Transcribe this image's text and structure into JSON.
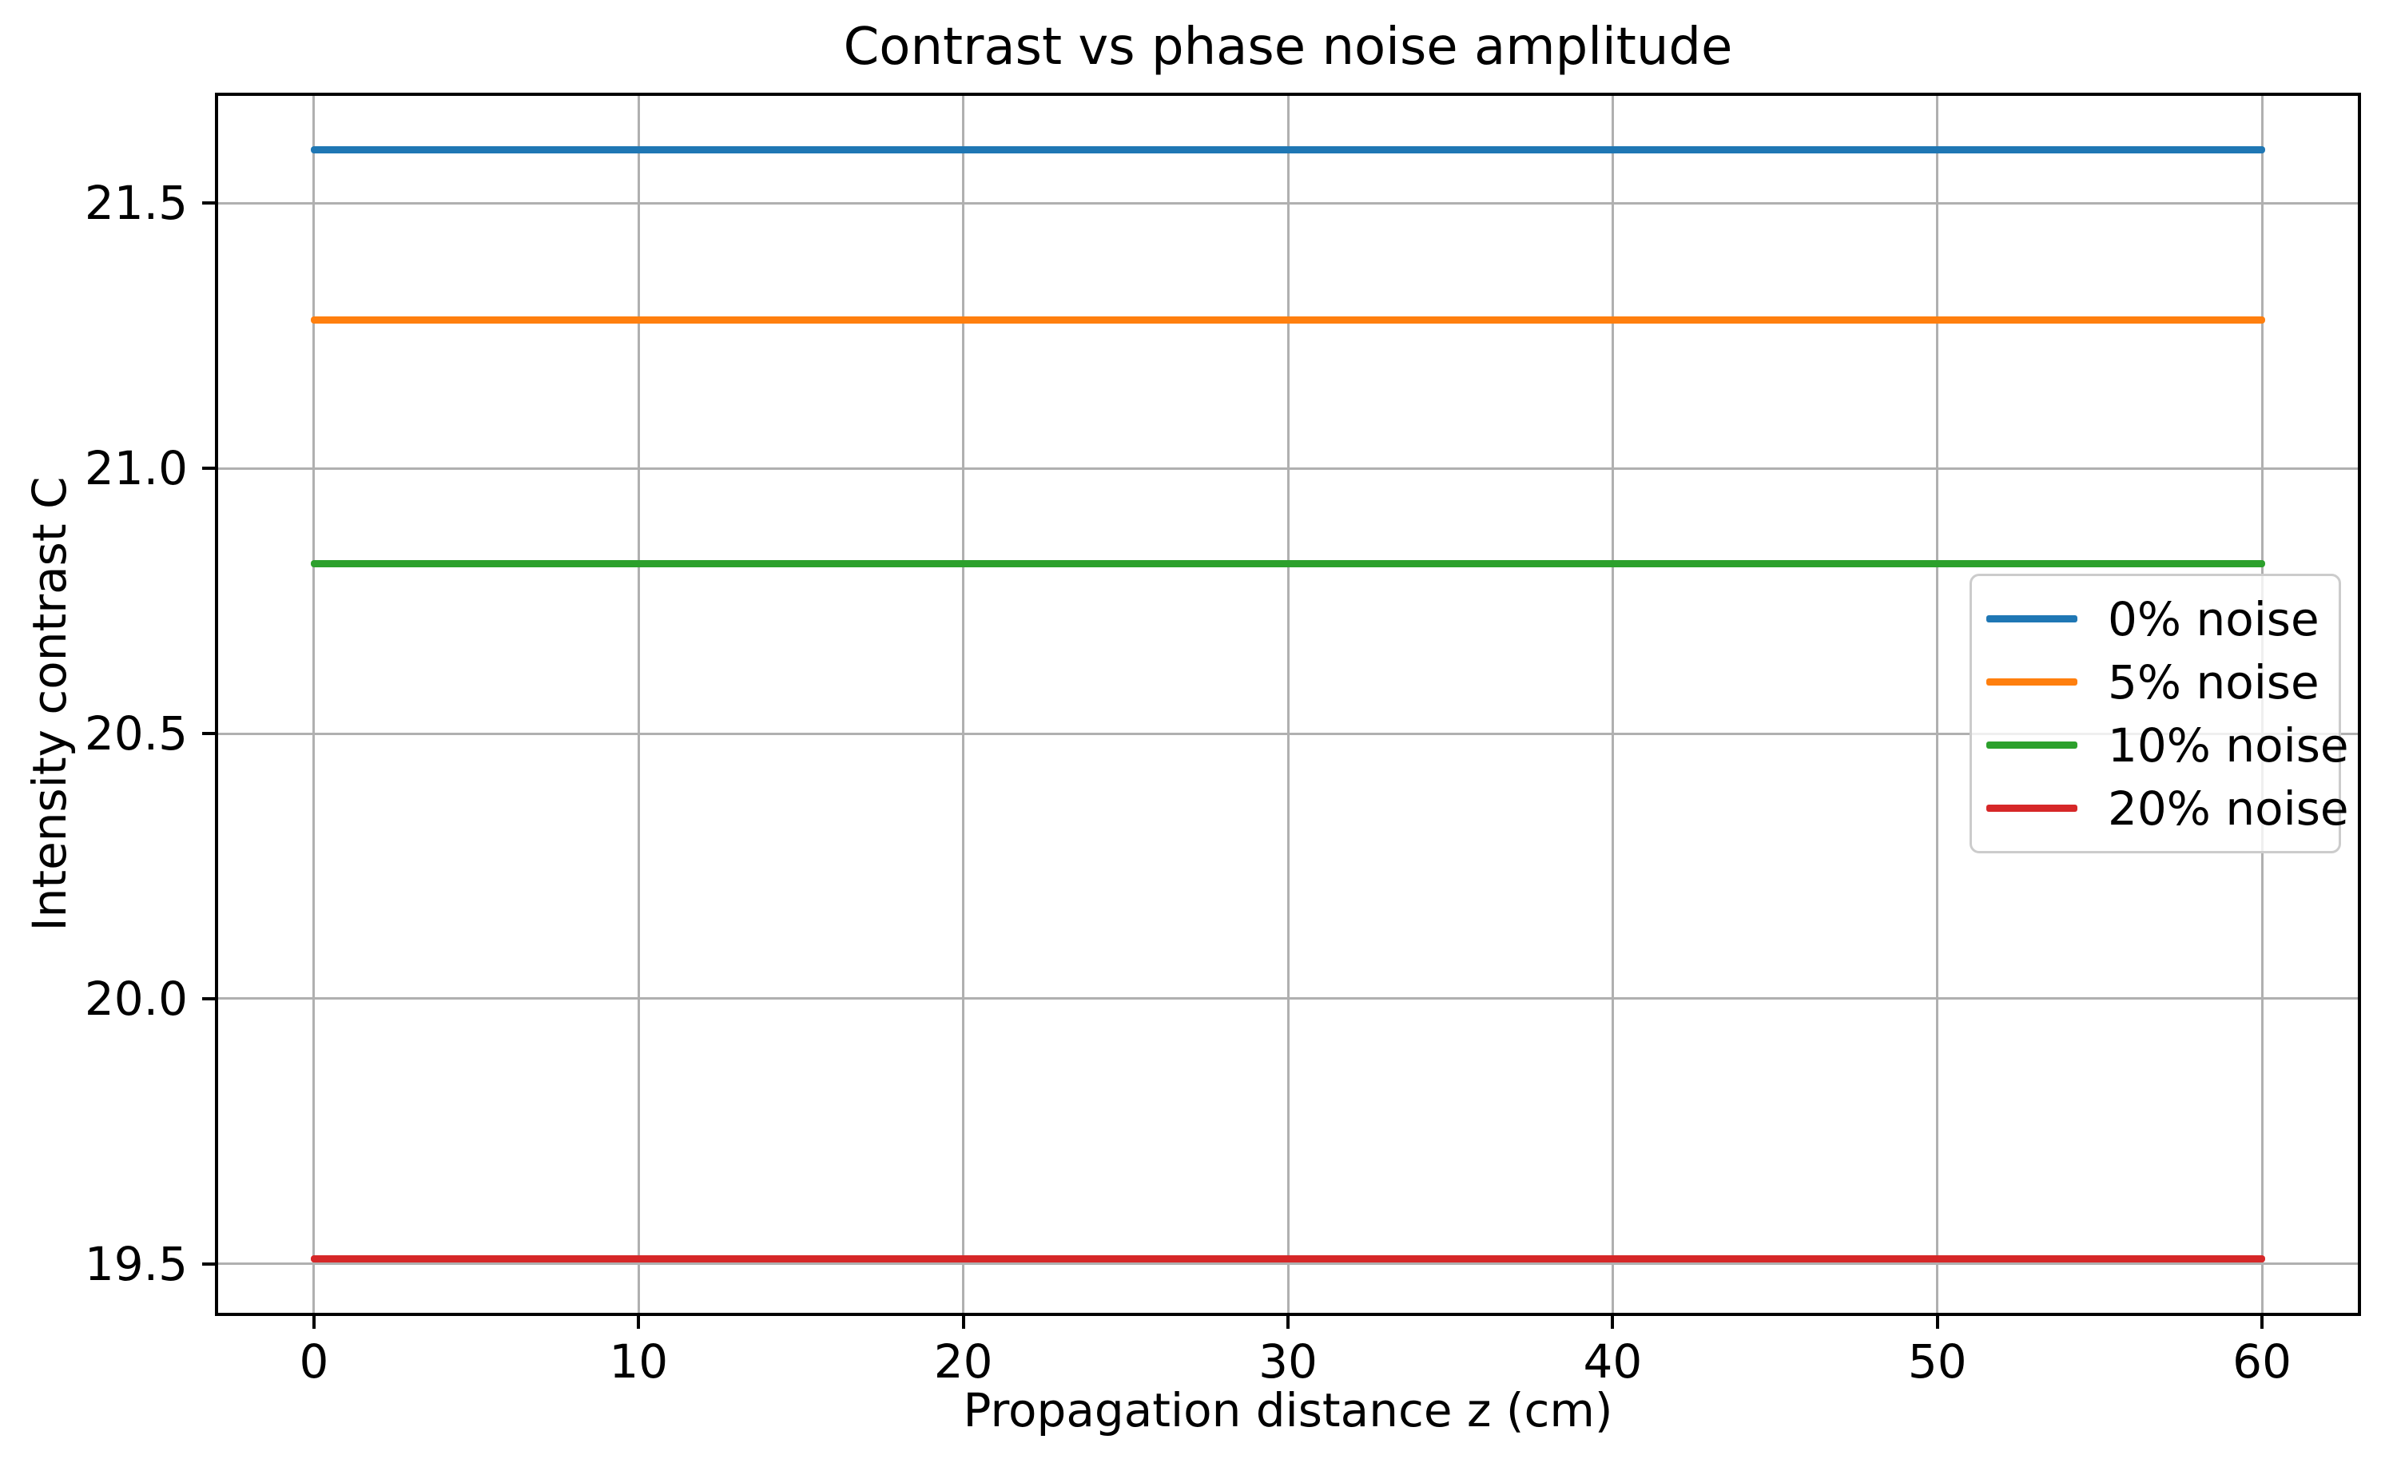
{
  "chart_data": {
    "type": "line",
    "title": "Contrast vs phase noise amplitude",
    "xlabel": "Propagation distance z (cm)",
    "ylabel": "Intensity contrast C",
    "x_range": [
      0,
      60
    ],
    "xlim": [
      -3,
      63
    ],
    "ylim": [
      19.405,
      21.705
    ],
    "x_ticks": [
      0,
      10,
      20,
      30,
      40,
      50,
      60
    ],
    "y_ticks": [
      19.5,
      20.0,
      20.5,
      21.0,
      21.5
    ],
    "grid": true,
    "grid_color": "#b0b0b0",
    "legend_position": "center right",
    "series": [
      {
        "name": "0% noise",
        "color": "#1f77b4",
        "x": [
          0,
          60
        ],
        "y": [
          21.6,
          21.6
        ],
        "value": 21.6
      },
      {
        "name": "5% noise",
        "color": "#ff7f0e",
        "x": [
          0,
          60
        ],
        "y": [
          21.28,
          21.28
        ],
        "value": 21.28
      },
      {
        "name": "10% noise",
        "color": "#2ca02c",
        "x": [
          0,
          60
        ],
        "y": [
          20.82,
          20.82
        ],
        "value": 20.82
      },
      {
        "name": "20% noise",
        "color": "#d62728",
        "x": [
          0,
          60
        ],
        "y": [
          19.51,
          19.51
        ],
        "value": 19.51
      }
    ]
  }
}
